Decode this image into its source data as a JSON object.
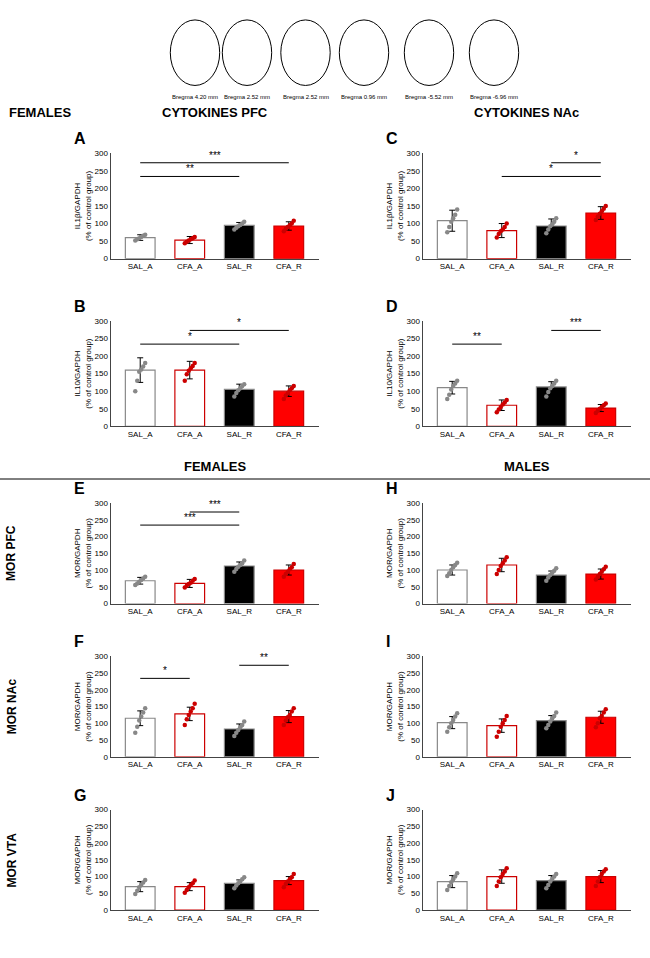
{
  "chart_data": [
    {
      "type": "bar",
      "title": "A",
      "categories": [
        "SAL_A",
        "CFA_A",
        "SAL_R",
        "CFA_R"
      ],
      "ylabel": "IL1β/GAPDH\n(% of control group)",
      "ylim": [
        0,
        300
      ],
      "yticks": [
        0,
        50,
        100,
        150,
        200,
        250,
        300
      ],
      "grid": false,
      "series": [
        {
          "type": "bar",
          "values": [
            60,
            53,
            95,
            93
          ],
          "errors": [
            8,
            10,
            8,
            12
          ],
          "colors": [
            "white",
            "white",
            "black",
            "red"
          ]
        },
        {
          "type": "scatter",
          "values": [
            [
              52,
              55,
              58,
              62,
              65,
              68
            ],
            [
              44,
              48,
              52,
              55,
              58,
              62
            ],
            [
              83,
              88,
              92,
              96,
              100,
              105
            ],
            [
              78,
              85,
              90,
              95,
              100,
              108
            ]
          ],
          "colors": [
            "#888888",
            "#cc0000",
            "#888888",
            "#cc0000"
          ]
        }
      ],
      "annotations": [
        "FEMALES",
        "CYTOKINES PFC",
        "Bregma 4.20 mm",
        "Bregma 2.52 mm",
        "Bregma 2.52 mm",
        "Bregma 0.96 mm",
        "Bregma -5.52 mm",
        "Bregma -6.96 mm",
        {
          "text": "**",
          "x": [
            "SAL_A",
            "SAL_R"
          ],
          "y": 234
        },
        {
          "text": "***",
          "x": [
            "SAL_A",
            "CFA_R"
          ],
          "y": 273
        }
      ]
    },
    {
      "type": "bar",
      "title": "B",
      "categories": [
        "SAL_A",
        "CFA_A",
        "SAL_R",
        "CFA_R"
      ],
      "ylabel": "IL10/GAPDH\n(% of control group)",
      "ylim": [
        0,
        300
      ],
      "yticks": [
        0,
        50,
        100,
        150,
        200,
        250,
        300
      ],
      "grid": false,
      "series": [
        {
          "type": "bar",
          "values": [
            160,
            160,
            105,
            100
          ],
          "errors": [
            35,
            25,
            15,
            15
          ],
          "colors": [
            "white",
            "white",
            "black",
            "red"
          ]
        },
        {
          "type": "scatter",
          "values": [
            [
              100,
              130,
              155,
              162,
              170,
              180
            ],
            [
              130,
              148,
              158,
              165,
              172,
              180
            ],
            [
              85,
              95,
              103,
              108,
              115,
              120
            ],
            [
              78,
              88,
              95,
              103,
              108,
              115
            ]
          ],
          "colors": [
            "#888888",
            "#cc0000",
            "#888888",
            "#cc0000"
          ]
        }
      ],
      "annotations": [
        {
          "text": "*",
          "x": [
            "SAL_A",
            "SAL_R"
          ],
          "y": 234
        },
        {
          "text": "*",
          "x": [
            "CFA_A",
            "CFA_R"
          ],
          "y": 273
        }
      ]
    },
    {
      "type": "bar",
      "title": "C",
      "categories": [
        "SAL_A",
        "CFA_A",
        "SAL_R",
        "CFA_R"
      ],
      "ylabel": "IL1β/GAPDH\n(% of control group)",
      "ylim": [
        0,
        300
      ],
      "yticks": [
        0,
        50,
        100,
        150,
        200,
        250,
        300
      ],
      "grid": false,
      "series": [
        {
          "type": "bar",
          "values": [
            108,
            80,
            93,
            130
          ],
          "errors": [
            30,
            20,
            20,
            18
          ],
          "colors": [
            "white",
            "white",
            "black",
            "red"
          ]
        },
        {
          "type": "scatter",
          "values": [
            [
              75,
              90,
              105,
              115,
              125,
              140
            ],
            [
              60,
              70,
              78,
              83,
              90,
              100
            ],
            [
              72,
              83,
              92,
              98,
              105,
              115
            ],
            [
              110,
              120,
              128,
              135,
              142,
              150
            ]
          ],
          "colors": [
            "#888888",
            "#cc0000",
            "#888888",
            "#cc0000"
          ]
        }
      ],
      "annotations": [
        "CYTOKINES NAc",
        {
          "text": "*",
          "x": [
            "CFA_A",
            "CFA_R"
          ],
          "y": 234
        },
        {
          "text": "*",
          "x": [
            "SAL_R",
            "CFA_R"
          ],
          "y": 273
        }
      ]
    },
    {
      "type": "bar",
      "title": "D",
      "categories": [
        "SAL_A",
        "CFA_A",
        "SAL_R",
        "CFA_R"
      ],
      "ylabel": "IL10/GAPDH\n(% of control group)",
      "ylim": [
        0,
        300
      ],
      "yticks": [
        0,
        50,
        100,
        150,
        200,
        250,
        300
      ],
      "grid": false,
      "series": [
        {
          "type": "bar",
          "values": [
            110,
            60,
            112,
            52
          ],
          "errors": [
            18,
            15,
            15,
            10
          ],
          "colors": [
            "white",
            "white",
            "black",
            "red"
          ]
        },
        {
          "type": "scatter",
          "values": [
            [
              78,
              90,
              105,
              115,
              122,
              130
            ],
            [
              40,
              48,
              55,
              62,
              68,
              75
            ],
            [
              85,
              98,
              108,
              115,
              122,
              130
            ],
            [
              38,
              44,
              50,
              55,
              60,
              65
            ]
          ],
          "colors": [
            "#888888",
            "#cc0000",
            "#888888",
            "#cc0000"
          ]
        }
      ],
      "annotations": [
        {
          "text": "**",
          "x": [
            "SAL_A",
            "CFA_A"
          ],
          "y": 234
        },
        {
          "text": "***",
          "x": [
            "SAL_R",
            "CFA_R"
          ],
          "y": 273
        }
      ]
    },
    {
      "type": "bar",
      "title": "E",
      "categories": [
        "SAL_A",
        "CFA_A",
        "SAL_R",
        "CFA_R"
      ],
      "ylabel": "MOR/GAPDH\n(% of control group)",
      "ylim": [
        0,
        300
      ],
      "yticks": [
        0,
        50,
        100,
        150,
        200,
        250,
        300
      ],
      "grid": false,
      "series": [
        {
          "type": "bar",
          "values": [
            68,
            60,
            112,
            100
          ],
          "errors": [
            10,
            12,
            12,
            15
          ],
          "colors": [
            "white",
            "white",
            "black",
            "red"
          ]
        },
        {
          "type": "scatter",
          "values": [
            [
              55,
              60,
              65,
              70,
              75,
              80
            ],
            [
              48,
              53,
              58,
              62,
              68,
              73
            ],
            [
              95,
              103,
              110,
              115,
              120,
              128
            ],
            [
              80,
              88,
              95,
              102,
              108,
              118
            ]
          ],
          "colors": [
            "#888888",
            "#cc0000",
            "#888888",
            "#cc0000"
          ]
        }
      ],
      "annotations": [
        "FEMALES",
        "MOR PFC",
        {
          "text": "***",
          "x": [
            "SAL_A",
            "SAL_R"
          ],
          "y": 234
        },
        {
          "text": "***",
          "x": [
            "CFA_A",
            "SAL_R"
          ],
          "y": 273
        }
      ]
    },
    {
      "type": "bar",
      "title": "F",
      "categories": [
        "SAL_A",
        "CFA_A",
        "SAL_R",
        "CFA_R"
      ],
      "ylabel": "MOR/GAPDH\n(% of control group)",
      "ylim": [
        0,
        300
      ],
      "yticks": [
        0,
        50,
        100,
        150,
        200,
        250,
        300
      ],
      "grid": false,
      "series": [
        {
          "type": "bar",
          "values": [
            115,
            128,
            83,
            120
          ],
          "errors": [
            22,
            20,
            15,
            18
          ],
          "colors": [
            "white",
            "white",
            "black",
            "red"
          ]
        },
        {
          "type": "scatter",
          "values": [
            [
              72,
              90,
              108,
              120,
              132,
              145
            ],
            [
              95,
              112,
              125,
              135,
              145,
              158
            ],
            [
              62,
              72,
              80,
              88,
              95,
              105
            ],
            [
              95,
              108,
              118,
              125,
              135,
              145
            ]
          ],
          "colors": [
            "#888888",
            "#cc0000",
            "#888888",
            "#cc0000"
          ]
        }
      ],
      "annotations": [
        "MOR NAc",
        {
          "text": "*",
          "x": [
            "SAL_A",
            "CFA_A"
          ],
          "y": 234
        },
        {
          "text": "**",
          "x": [
            "SAL_R",
            "CFA_R"
          ],
          "y": 273
        }
      ]
    },
    {
      "type": "bar",
      "title": "G",
      "categories": [
        "SAL_A",
        "CFA_A",
        "SAL_R",
        "CFA_R"
      ],
      "ylabel": "MOR/GAPDH\n(% of control group)",
      "ylim": [
        0,
        300
      ],
      "yticks": [
        0,
        50,
        100,
        150,
        200,
        250,
        300
      ],
      "grid": false,
      "series": [
        {
          "type": "bar",
          "values": [
            70,
            70,
            80,
            88
          ],
          "errors": [
            15,
            12,
            10,
            12
          ],
          "colors": [
            "white",
            "white",
            "black",
            "red"
          ]
        },
        {
          "type": "scatter",
          "values": [
            [
              48,
              58,
              68,
              75,
              82,
              90
            ],
            [
              52,
              60,
              68,
              75,
              80,
              88
            ],
            [
              65,
              73,
              80,
              85,
              92,
              98
            ],
            [
              68,
              78,
              85,
              92,
              98,
              108
            ]
          ],
          "colors": [
            "#888888",
            "#cc0000",
            "#888888",
            "#cc0000"
          ]
        }
      ],
      "annotations": [
        "MOR VTA"
      ]
    },
    {
      "type": "bar",
      "title": "H",
      "categories": [
        "SAL_A",
        "CFA_A",
        "SAL_R",
        "CFA_R"
      ],
      "ylabel": "MOR/GAPDH\n(% of control group)",
      "ylim": [
        0,
        300
      ],
      "yticks": [
        0,
        50,
        100,
        150,
        200,
        250,
        300
      ],
      "grid": false,
      "series": [
        {
          "type": "bar",
          "values": [
            100,
            115,
            85,
            88
          ],
          "errors": [
            15,
            20,
            12,
            15
          ],
          "colors": [
            "white",
            "white",
            "black",
            "red"
          ]
        },
        {
          "type": "scatter",
          "values": [
            [
              82,
              90,
              100,
              108,
              115,
              122
            ],
            [
              88,
              100,
              112,
              120,
              128,
              138
            ],
            [
              68,
              78,
              85,
              92,
              98,
              105
            ],
            [
              72,
              80,
              88,
              95,
              102,
              110
            ]
          ],
          "colors": [
            "#888888",
            "#cc0000",
            "#888888",
            "#cc0000"
          ]
        }
      ],
      "annotations": [
        "MALES"
      ]
    },
    {
      "type": "bar",
      "title": "I",
      "categories": [
        "SAL_A",
        "CFA_A",
        "SAL_R",
        "CFA_R"
      ],
      "ylabel": "MOR/GAPDH\n(% of control group)",
      "ylim": [
        0,
        300
      ],
      "yticks": [
        0,
        50,
        100,
        150,
        200,
        250,
        300
      ],
      "grid": false,
      "series": [
        {
          "type": "bar",
          "values": [
            102,
            93,
            108,
            118
          ],
          "errors": [
            18,
            20,
            15,
            18
          ],
          "colors": [
            "white",
            "white",
            "black",
            "red"
          ]
        },
        {
          "type": "scatter",
          "values": [
            [
              75,
              88,
              100,
              110,
              120,
              130
            ],
            [
              60,
              75,
              90,
              100,
              110,
              122
            ],
            [
              85,
              95,
              105,
              115,
              122,
              132
            ],
            [
              88,
              100,
              115,
              122,
              132,
              142
            ]
          ],
          "colors": [
            "#888888",
            "#cc0000",
            "#888888",
            "#cc0000"
          ]
        }
      ]
    },
    {
      "type": "bar",
      "title": "J",
      "categories": [
        "SAL_A",
        "CFA_A",
        "SAL_R",
        "CFA_R"
      ],
      "ylabel": "MOR/GAPDH\n(% of control group)",
      "ylim": [
        0,
        300
      ],
      "yticks": [
        0,
        50,
        100,
        150,
        200,
        250,
        300
      ],
      "grid": false,
      "series": [
        {
          "type": "bar",
          "values": [
            85,
            100,
            88,
            100
          ],
          "errors": [
            18,
            20,
            15,
            18
          ],
          "colors": [
            "white",
            "white",
            "black",
            "red"
          ]
        },
        {
          "type": "scatter",
          "values": [
            [
              60,
              72,
              83,
              92,
              100,
              110
            ],
            [
              72,
              85,
              98,
              108,
              115,
              125
            ],
            [
              65,
              75,
              85,
              93,
              100,
              108
            ],
            [
              72,
              85,
              98,
              108,
              115,
              122
            ]
          ],
          "colors": [
            "#888888",
            "#cc0000",
            "#888888",
            "#cc0000"
          ]
        }
      ]
    }
  ]
}
